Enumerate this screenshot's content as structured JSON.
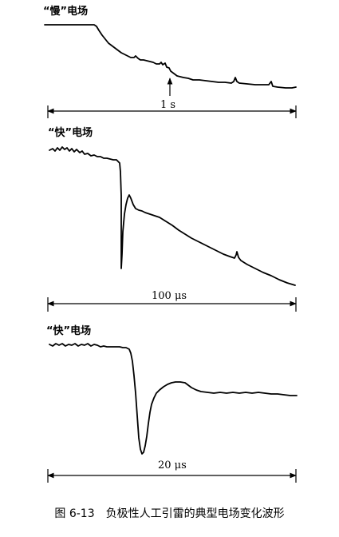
{
  "panels": [
    {
      "label": "“慢”电场",
      "scale": "1 s"
    },
    {
      "label": "“快”电场",
      "scale": "100 μs"
    },
    {
      "label": "“快”电场",
      "scale": "20 μs"
    }
  ],
  "caption": "图 6-13　负极性人工引雷的典型电场变化波形"
}
